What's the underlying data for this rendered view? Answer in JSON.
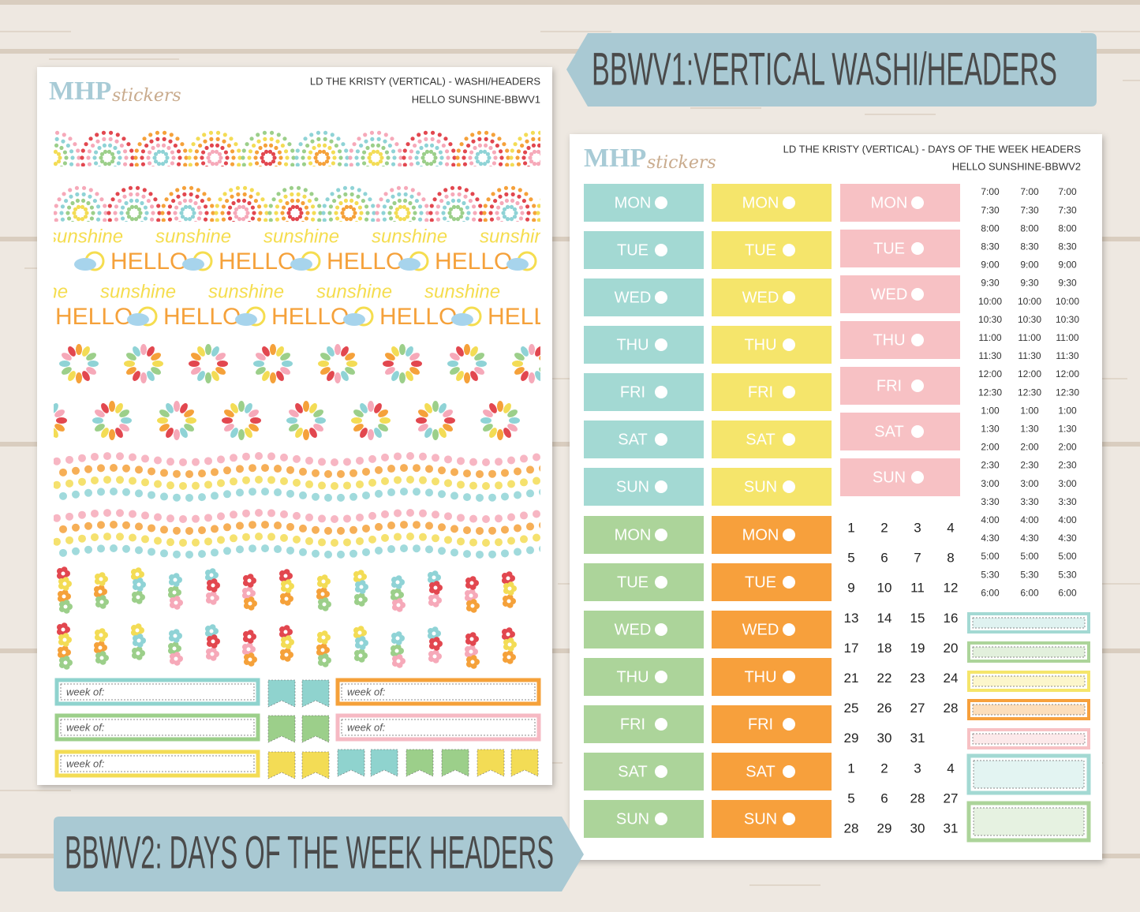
{
  "banners": {
    "top": "BBWV1:VERTICAL WASHI/HEADERS",
    "bottom": "BBWV2: DAYS OF THE WEEK HEADERS"
  },
  "logo": {
    "bold": "MHP",
    "script": "stickers"
  },
  "sheet1": {
    "title": "LD THE KRISTY (VERTICAL) - WASHI/HEADERS",
    "subtitle": "HELLO SUNSHINE-BBWV1",
    "washi_words": [
      "sunshine",
      "HELLO"
    ],
    "label": "week of:"
  },
  "sheet2": {
    "title": "LD THE KRISTY (VERTICAL) - DAYS OF THE WEEK HEADERS",
    "subtitle": "HELLO SUNSHINE-BBWV2",
    "days": [
      "MON",
      "TUE",
      "WED",
      "THU",
      "FRI",
      "SAT",
      "SUN"
    ],
    "times": [
      "7:00",
      "7:30",
      "8:00",
      "8:30",
      "9:00",
      "9:30",
      "10:00",
      "10:30",
      "11:00",
      "11:30",
      "12:00",
      "12:30",
      "1:00",
      "1:30",
      "2:00",
      "2:30",
      "3:00",
      "3:30",
      "4:00",
      "4:30",
      "5:00",
      "5:30",
      "6:00"
    ],
    "dates": [
      [
        1,
        2,
        3,
        4
      ],
      [
        5,
        6,
        7,
        8
      ],
      [
        9,
        10,
        11,
        12
      ],
      [
        13,
        14,
        15,
        16
      ],
      [
        17,
        18,
        19,
        20
      ],
      [
        21,
        22,
        23,
        24
      ],
      [
        25,
        26,
        27,
        28
      ],
      [
        29,
        30,
        31
      ],
      [
        1,
        2,
        3,
        4
      ],
      [
        5,
        6,
        28,
        27
      ],
      [
        28,
        29,
        30,
        31
      ]
    ]
  }
}
